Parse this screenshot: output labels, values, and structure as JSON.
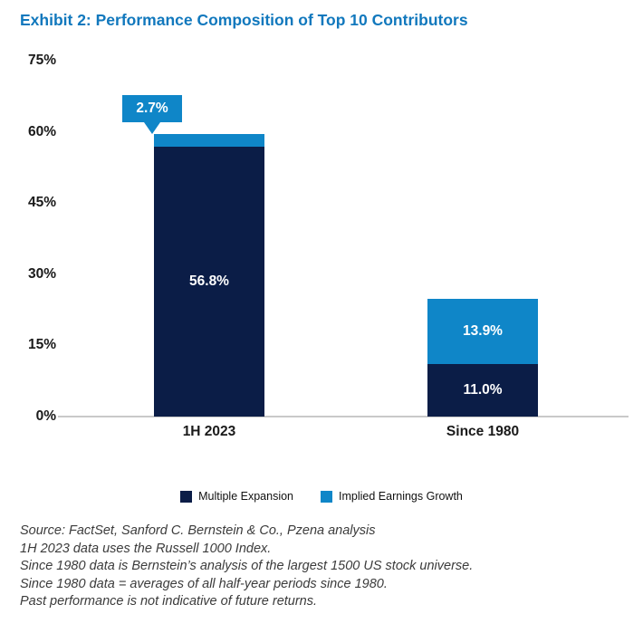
{
  "title": "Exhibit 2: Performance Composition of Top 10 Contributors",
  "chart_data": {
    "type": "bar",
    "stacked": true,
    "title": "Exhibit 2: Performance Composition of Top 10 Contributors",
    "categories": [
      "1H 2023",
      "Since 1980"
    ],
    "series": [
      {
        "name": "Multiple Expansion",
        "color": "#0b1d47",
        "values": [
          56.8,
          11.0
        ],
        "labels": [
          "56.8%",
          "11.0%"
        ]
      },
      {
        "name": "Implied Earnings Growth",
        "color": "#0f86c8",
        "values": [
          2.7,
          13.9
        ],
        "labels": [
          "2.7%",
          "13.9%"
        ]
      }
    ],
    "callout": {
      "category_index": 0,
      "series_index": 1,
      "text": "2.7%"
    },
    "ylim": [
      0,
      75
    ],
    "ytick_labels": [
      "75%",
      "60%",
      "45%",
      "30%",
      "15%",
      "0%"
    ],
    "ytick_values": [
      75,
      60,
      45,
      30,
      15,
      0
    ],
    "grid": false,
    "legend_position": "bottom"
  },
  "legend": {
    "items": [
      {
        "label": "Multiple Expansion",
        "color": "#0b1d47"
      },
      {
        "label": "Implied Earnings Growth",
        "color": "#0f86c8"
      }
    ]
  },
  "footnotes": [
    "Source: FactSet, Sanford C. Bernstein & Co., Pzena analysis",
    "1H 2023 data uses the Russell 1000 Index.",
    "Since 1980 data is Bernstein’s analysis of the largest 1500 US stock universe.",
    "Since 1980 data = averages of all half-year periods since 1980.",
    "Past performance is not indicative of future returns."
  ],
  "colors": {
    "title_blue": "#1178bd",
    "navy": "#0b1d47",
    "light_blue": "#0f86c8",
    "axis_gray": "#c9c9c9"
  }
}
